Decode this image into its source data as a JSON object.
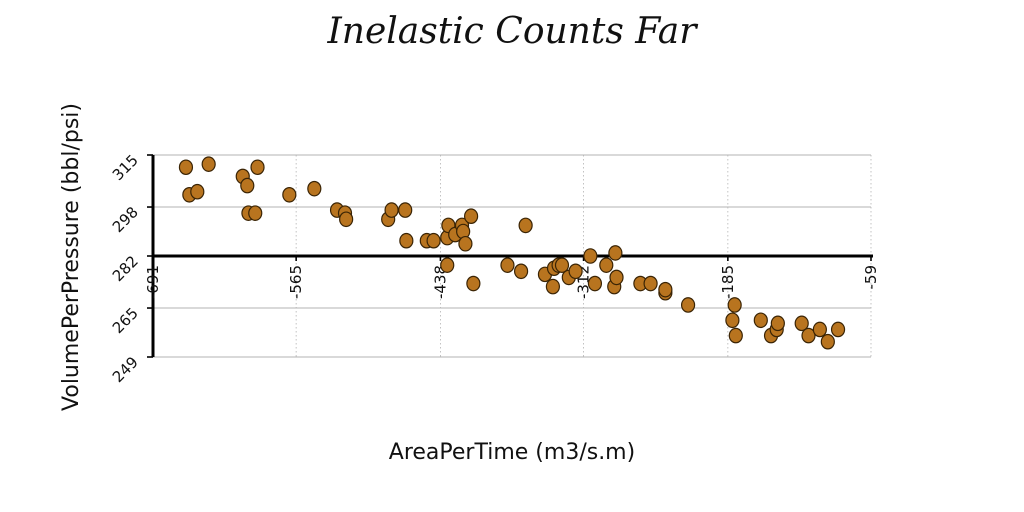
{
  "chart_data": {
    "type": "scatter",
    "title": "Inelastic Counts Far",
    "xlabel": "AreaPerTime (m3/s.m)",
    "ylabel": "VolumePerPressure (bbl/psi)",
    "xlim": [
      -691,
      -59
    ],
    "ylim": [
      249,
      315
    ],
    "x_ticks": [
      "-691",
      "-565",
      "-438",
      "-312",
      "-185",
      "-59"
    ],
    "y_ticks": [
      "249",
      "265",
      "282",
      "298",
      "315"
    ],
    "x_axis_crosses_y_at": 282,
    "grid": "horizontal solid, vertical dotted",
    "marker_color": "#b8741f",
    "series": [
      {
        "points": [
          {
            "x": -662,
            "y": 311
          },
          {
            "x": -642,
            "y": 312
          },
          {
            "x": -659,
            "y": 302
          },
          {
            "x": -652,
            "y": 303
          },
          {
            "x": -612,
            "y": 308
          },
          {
            "x": -608,
            "y": 305
          },
          {
            "x": -599,
            "y": 311
          },
          {
            "x": -607,
            "y": 296
          },
          {
            "x": -601,
            "y": 296
          },
          {
            "x": -571,
            "y": 302
          },
          {
            "x": -549,
            "y": 304
          },
          {
            "x": -529,
            "y": 297
          },
          {
            "x": -522,
            "y": 296
          },
          {
            "x": -521,
            "y": 294
          },
          {
            "x": -484,
            "y": 294
          },
          {
            "x": -481,
            "y": 297
          },
          {
            "x": -469,
            "y": 297
          },
          {
            "x": -468,
            "y": 287
          },
          {
            "x": -450,
            "y": 287
          },
          {
            "x": -444,
            "y": 287
          },
          {
            "x": -432,
            "y": 288
          },
          {
            "x": -431,
            "y": 292
          },
          {
            "x": -425,
            "y": 289
          },
          {
            "x": -419,
            "y": 292
          },
          {
            "x": -418,
            "y": 290
          },
          {
            "x": -416,
            "y": 286
          },
          {
            "x": -411,
            "y": 295
          },
          {
            "x": -432,
            "y": 279
          },
          {
            "x": -409,
            "y": 273
          },
          {
            "x": -363,
            "y": 292
          },
          {
            "x": -379,
            "y": 279
          },
          {
            "x": -367,
            "y": 277
          },
          {
            "x": -346,
            "y": 276
          },
          {
            "x": -339,
            "y": 272
          },
          {
            "x": -338,
            "y": 278
          },
          {
            "x": -334,
            "y": 279
          },
          {
            "x": -331,
            "y": 279
          },
          {
            "x": -325,
            "y": 275
          },
          {
            "x": -319,
            "y": 277
          },
          {
            "x": -306,
            "y": 282
          },
          {
            "x": -302,
            "y": 273
          },
          {
            "x": -292,
            "y": 279
          },
          {
            "x": -285,
            "y": 272
          },
          {
            "x": -284,
            "y": 283
          },
          {
            "x": -283,
            "y": 275
          },
          {
            "x": -262,
            "y": 273
          },
          {
            "x": -253,
            "y": 273
          },
          {
            "x": -240,
            "y": 270
          },
          {
            "x": -240,
            "y": 271
          },
          {
            "x": -220,
            "y": 266
          },
          {
            "x": -179,
            "y": 266
          },
          {
            "x": -181,
            "y": 261
          },
          {
            "x": -178,
            "y": 256
          },
          {
            "x": -156,
            "y": 261
          },
          {
            "x": -147,
            "y": 256
          },
          {
            "x": -142,
            "y": 258
          },
          {
            "x": -141,
            "y": 260
          },
          {
            "x": -120,
            "y": 260
          },
          {
            "x": -114,
            "y": 256
          },
          {
            "x": -104,
            "y": 258
          },
          {
            "x": -97,
            "y": 254
          },
          {
            "x": -88,
            "y": 258
          }
        ]
      }
    ]
  }
}
